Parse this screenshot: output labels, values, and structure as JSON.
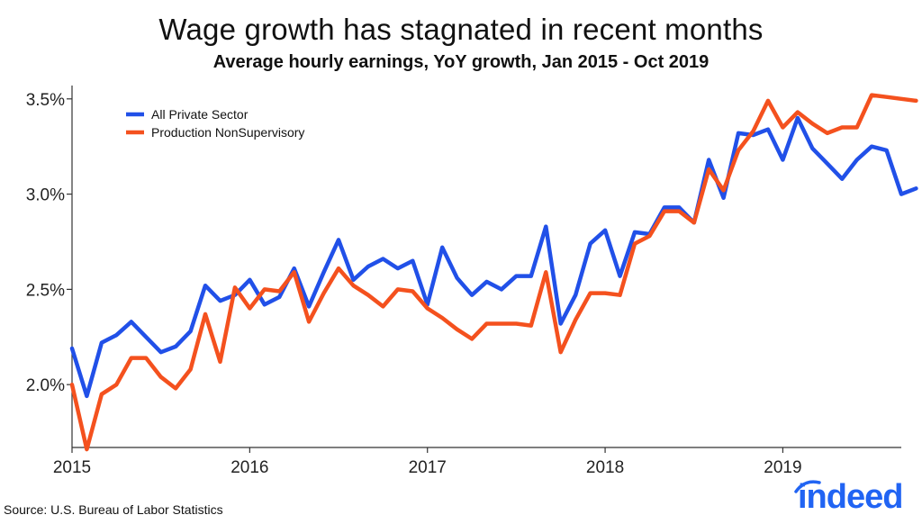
{
  "chart_data": {
    "type": "line",
    "title": "Wage growth has stagnated in recent months",
    "subtitle": "Average hourly earnings, YoY growth, Jan 2015 - Oct 2019",
    "xlabel": "",
    "ylabel": "",
    "ylim": [
      1.67,
      3.57
    ],
    "yticks": [
      2.0,
      2.5,
      3.0,
      3.5
    ],
    "ytick_labels": [
      "2.0%",
      "2.5%",
      "3.0%",
      "3.5%"
    ],
    "xticks": [
      0,
      12,
      24,
      36,
      48
    ],
    "xtick_labels": [
      "2015",
      "2016",
      "2017",
      "2018",
      "2019"
    ],
    "x_range": [
      0,
      56
    ],
    "grid": false,
    "legend_position": "top-left",
    "series": [
      {
        "name": "All Private Sector",
        "color": "#2150e8",
        "values": [
          2.19,
          1.94,
          2.22,
          2.26,
          2.33,
          2.25,
          2.17,
          2.2,
          2.28,
          2.52,
          2.44,
          2.47,
          2.55,
          2.42,
          2.46,
          2.61,
          2.41,
          2.59,
          2.76,
          2.55,
          2.62,
          2.66,
          2.61,
          2.65,
          2.42,
          2.72,
          2.56,
          2.47,
          2.54,
          2.5,
          2.57,
          2.57,
          2.83,
          2.32,
          2.47,
          2.74,
          2.81,
          2.57,
          2.8,
          2.79,
          2.93,
          2.93,
          2.85,
          3.18,
          2.98,
          3.32,
          3.31,
          3.34,
          3.18,
          3.4,
          3.24,
          3.16,
          3.08,
          3.18,
          3.25,
          3.23,
          3.0,
          3.03
        ]
      },
      {
        "name": "Production NonSupervisory",
        "color": "#f4511e",
        "values": [
          2.0,
          1.66,
          1.95,
          2.0,
          2.14,
          2.14,
          2.04,
          1.98,
          2.08,
          2.37,
          2.12,
          2.51,
          2.4,
          2.5,
          2.49,
          2.59,
          2.33,
          2.48,
          2.61,
          2.52,
          2.47,
          2.41,
          2.5,
          2.49,
          2.4,
          2.35,
          2.29,
          2.24,
          2.32,
          2.32,
          2.32,
          2.31,
          2.59,
          2.17,
          2.34,
          2.48,
          2.48,
          2.47,
          2.74,
          2.78,
          2.91,
          2.91,
          2.85,
          3.13,
          3.02,
          3.23,
          3.33,
          3.49,
          3.35,
          3.43,
          3.37,
          3.32,
          3.35,
          3.35,
          3.52,
          3.51,
          3.5,
          3.49
        ]
      }
    ]
  },
  "footer": {
    "source": "Source: U.S. Bureau of Labor Statistics",
    "logo_text": "indeed"
  },
  "colors": {
    "brand": "#2164f3",
    "axis": "#333333"
  }
}
